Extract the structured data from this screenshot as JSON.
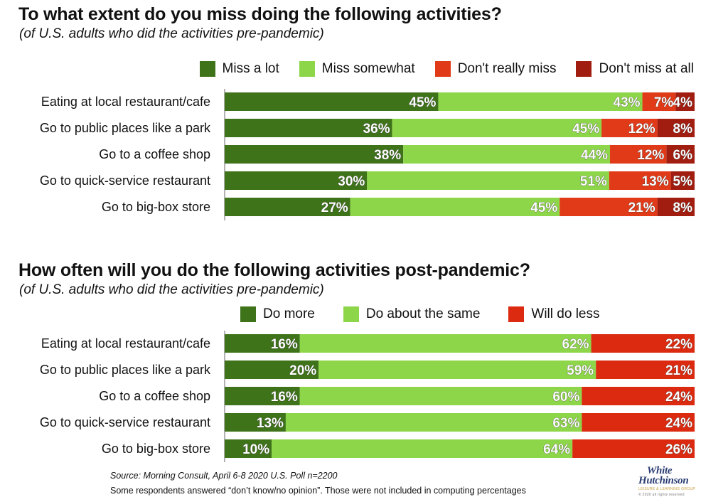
{
  "colors": {
    "miss_a_lot": "#3e7319",
    "miss_somewhat": "#8ed649",
    "dont_really_miss": "#e03a18",
    "dont_miss_at_all": "#a11d10",
    "do_more": "#3e7319",
    "do_about_same": "#8ed649",
    "will_do_less": "#db2a10"
  },
  "chart_data": [
    {
      "type": "bar",
      "orientation": "horizontal-stacked",
      "title": "To what extent do you miss doing the following activities?",
      "subtitle": "(of U.S. adults who did the activities pre-pandemic)",
      "categories": [
        "Eating at local restaurant/cafe",
        "Go to public places like a park",
        "Go to a coffee shop",
        "Go to quick-service restaurant",
        "Go to big-box store"
      ],
      "series": [
        {
          "name": "Miss a lot",
          "values": [
            45,
            36,
            38,
            30,
            27
          ],
          "labels": [
            "45%",
            "36%",
            "38%",
            "30%",
            "27%"
          ]
        },
        {
          "name": "Miss somewhat",
          "values": [
            43,
            45,
            44,
            51,
            45
          ],
          "labels": [
            "43%",
            "45%",
            "44%",
            "51%",
            "45%"
          ]
        },
        {
          "name": "Don't really miss",
          "values": [
            7,
            12,
            12,
            13,
            21
          ],
          "labels": [
            "7%",
            "12%",
            "12%",
            "13%",
            "21%"
          ]
        },
        {
          "name": "Don't miss at all",
          "values": [
            4,
            8,
            6,
            5,
            8
          ],
          "labels": [
            "4%",
            "8%",
            "6%",
            "5%",
            "8%"
          ]
        }
      ],
      "legend_position": "top-right",
      "grid": false
    },
    {
      "type": "bar",
      "orientation": "horizontal-stacked",
      "title": "How often will you do the following activities post-pandemic?",
      "subtitle": "(of U.S. adults who did the activities pre-pandemic)",
      "categories": [
        "Eating at local restaurant/cafe",
        "Go to public places like a park",
        "Go to a coffee shop",
        "Go to quick-service restaurant",
        "Go to big-box store"
      ],
      "series": [
        {
          "name": "Do more",
          "values": [
            16,
            20,
            16,
            13,
            10
          ],
          "labels": [
            "16%",
            "20%",
            "16%",
            "13%",
            "10%"
          ]
        },
        {
          "name": "Do about the same",
          "values": [
            62,
            59,
            60,
            63,
            64
          ],
          "labels": [
            "62%",
            "59%",
            "60%",
            "63%",
            "64%"
          ]
        },
        {
          "name": "Will do less",
          "values": [
            22,
            21,
            24,
            24,
            26
          ],
          "labels": [
            "22%",
            "21%",
            "24%",
            "24%",
            "26%"
          ]
        }
      ],
      "legend_position": "top",
      "grid": false
    }
  ],
  "footer": {
    "source": "Source: Morning Consult, April 6-8 2020 U.S. Poll n=2200",
    "note": "Some respondents answered “don’t know/no opinion”. Those were not included in computing percentages"
  },
  "logo": {
    "line1": "White",
    "line2": "Hutchinson",
    "tagline": "LEISURE & LEARNING GROUP",
    "copyright": "© 2020 all rights reserved"
  }
}
